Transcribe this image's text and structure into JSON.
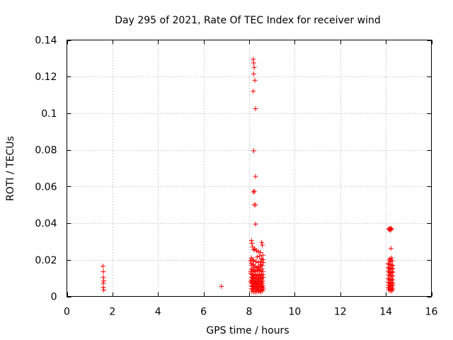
{
  "chart_data": {
    "type": "scatter",
    "title": "Day 295 of 2021, Rate Of TEC Index for receiver wind",
    "xlabel": "GPS time / hours",
    "ylabel": "ROTI / TECUs",
    "xlim": [
      0,
      16
    ],
    "ylim": [
      0,
      0.14
    ],
    "xticks": [
      0,
      2,
      4,
      6,
      8,
      10,
      12,
      14,
      16
    ],
    "yticks": [
      0,
      0.02,
      0.04,
      0.06,
      0.08,
      0.1,
      0.12,
      0.14
    ],
    "xtick_labels": [
      "0",
      "2",
      "4",
      "6",
      "8",
      "10",
      "12",
      "14",
      "16"
    ],
    "ytick_labels": [
      "0",
      "0.02",
      "0.04",
      "0.06",
      "0.08",
      "0.1",
      "0.12",
      "0.14"
    ],
    "grid": true,
    "marker": "+",
    "color": "#ff0000",
    "series": [
      {
        "points": [
          [
            1.58,
            0.0165
          ],
          [
            1.6,
            0.0135
          ],
          [
            1.6,
            0.0105
          ],
          [
            1.62,
            0.0085
          ],
          [
            1.6,
            0.0072
          ],
          [
            1.6,
            0.005
          ],
          [
            1.62,
            0.0035
          ],
          [
            6.78,
            0.0055
          ],
          [
            8.18,
            0.1295
          ],
          [
            8.2,
            0.1275
          ],
          [
            8.22,
            0.125
          ],
          [
            8.2,
            0.1215
          ],
          [
            8.25,
            0.118
          ],
          [
            8.18,
            0.112
          ],
          [
            8.28,
            0.1025
          ],
          [
            8.2,
            0.0795
          ],
          [
            8.28,
            0.0655
          ],
          [
            8.2,
            0.057
          ],
          [
            8.22,
            0.0575
          ],
          [
            8.22,
            0.05
          ],
          [
            8.28,
            0.05
          ],
          [
            8.28,
            0.0395
          ],
          [
            8.1,
            0.0305
          ],
          [
            8.12,
            0.029
          ],
          [
            8.15,
            0.027
          ],
          [
            8.2,
            0.0255
          ],
          [
            8.25,
            0.026
          ],
          [
            8.32,
            0.025
          ],
          [
            8.4,
            0.0245
          ],
          [
            8.55,
            0.0295
          ],
          [
            8.58,
            0.028
          ],
          [
            8.5,
            0.024
          ],
          [
            8.6,
            0.0225
          ],
          [
            8.45,
            0.022
          ],
          [
            8.35,
            0.0215
          ],
          [
            8.1,
            0.021
          ],
          [
            8.15,
            0.02
          ],
          [
            8.2,
            0.0195
          ],
          [
            8.3,
            0.019
          ],
          [
            8.4,
            0.0185
          ],
          [
            8.5,
            0.019
          ],
          [
            8.55,
            0.0205
          ],
          [
            8.6,
            0.02
          ],
          [
            8.1,
            0.018
          ],
          [
            8.12,
            0.017
          ],
          [
            8.18,
            0.0175
          ],
          [
            8.22,
            0.016
          ],
          [
            8.28,
            0.0165
          ],
          [
            8.35,
            0.0155
          ],
          [
            8.42,
            0.016
          ],
          [
            8.48,
            0.0165
          ],
          [
            8.52,
            0.0175
          ],
          [
            8.58,
            0.0168
          ],
          [
            8.1,
            0.015
          ],
          [
            8.15,
            0.0145
          ],
          [
            8.2,
            0.014
          ],
          [
            8.25,
            0.0135
          ],
          [
            8.3,
            0.014
          ],
          [
            8.38,
            0.0145
          ],
          [
            8.45,
            0.0138
          ],
          [
            8.5,
            0.0142
          ],
          [
            8.56,
            0.015
          ],
          [
            8.6,
            0.0135
          ],
          [
            8.08,
            0.0125
          ],
          [
            8.13,
            0.012
          ],
          [
            8.18,
            0.0115
          ],
          [
            8.24,
            0.0118
          ],
          [
            8.3,
            0.0112
          ],
          [
            8.36,
            0.012
          ],
          [
            8.42,
            0.0115
          ],
          [
            8.48,
            0.011
          ],
          [
            8.54,
            0.0122
          ],
          [
            8.6,
            0.0118
          ],
          [
            8.1,
            0.0105
          ],
          [
            8.15,
            0.01
          ],
          [
            8.2,
            0.0098
          ],
          [
            8.26,
            0.0095
          ],
          [
            8.32,
            0.0102
          ],
          [
            8.38,
            0.0098
          ],
          [
            8.44,
            0.0094
          ],
          [
            8.5,
            0.01
          ],
          [
            8.56,
            0.0096
          ],
          [
            8.1,
            0.009
          ],
          [
            8.14,
            0.0085
          ],
          [
            8.2,
            0.0082
          ],
          [
            8.25,
            0.008
          ],
          [
            8.3,
            0.0086
          ],
          [
            8.36,
            0.0078
          ],
          [
            8.42,
            0.0082
          ],
          [
            8.48,
            0.0085
          ],
          [
            8.54,
            0.0079
          ],
          [
            8.6,
            0.0083
          ],
          [
            8.1,
            0.0072
          ],
          [
            8.16,
            0.007
          ],
          [
            8.22,
            0.0068
          ],
          [
            8.28,
            0.0065
          ],
          [
            8.34,
            0.0071
          ],
          [
            8.4,
            0.0066
          ],
          [
            8.46,
            0.0069
          ],
          [
            8.52,
            0.0064
          ],
          [
            8.58,
            0.007
          ],
          [
            8.1,
            0.0058
          ],
          [
            8.14,
            0.0055
          ],
          [
            8.2,
            0.0052
          ],
          [
            8.26,
            0.005
          ],
          [
            8.32,
            0.0056
          ],
          [
            8.38,
            0.0053
          ],
          [
            8.44,
            0.0049
          ],
          [
            8.5,
            0.0055
          ],
          [
            8.56,
            0.0051
          ],
          [
            8.6,
            0.0058
          ],
          [
            8.1,
            0.0042
          ],
          [
            8.16,
            0.004
          ],
          [
            8.22,
            0.0038
          ],
          [
            8.28,
            0.0035
          ],
          [
            8.34,
            0.0041
          ],
          [
            8.4,
            0.0037
          ],
          [
            8.46,
            0.0033
          ],
          [
            8.52,
            0.0039
          ],
          [
            8.58,
            0.0036
          ],
          [
            8.12,
            0.0028
          ],
          [
            8.2,
            0.0025
          ],
          [
            8.3,
            0.0022
          ],
          [
            8.4,
            0.0027
          ],
          [
            8.5,
            0.0024
          ],
          [
            8.58,
            0.003
          ],
          [
            8.05,
            0.0195
          ],
          [
            8.07,
            0.0135
          ],
          [
            8.06,
            0.008
          ],
          [
            8.62,
            0.0185
          ],
          [
            8.62,
            0.0105
          ],
          [
            8.63,
            0.0045
          ],
          [
            14.15,
            0.037
          ],
          [
            14.18,
            0.0365
          ],
          [
            14.22,
            0.0372
          ],
          [
            14.25,
            0.0368
          ],
          [
            14.2,
            0.0362
          ],
          [
            14.12,
            0.0368
          ],
          [
            14.22,
            0.0262
          ],
          [
            14.25,
            0.021
          ],
          [
            14.18,
            0.0205
          ],
          [
            14.15,
            0.0198
          ],
          [
            14.2,
            0.019
          ],
          [
            14.28,
            0.0195
          ],
          [
            14.1,
            0.018
          ],
          [
            14.15,
            0.0175
          ],
          [
            14.2,
            0.017
          ],
          [
            14.25,
            0.0172
          ],
          [
            14.3,
            0.0168
          ],
          [
            14.1,
            0.0158
          ],
          [
            14.14,
            0.0152
          ],
          [
            14.2,
            0.0148
          ],
          [
            14.26,
            0.0155
          ],
          [
            14.3,
            0.015
          ],
          [
            14.1,
            0.0138
          ],
          [
            14.16,
            0.0132
          ],
          [
            14.22,
            0.0128
          ],
          [
            14.28,
            0.0135
          ],
          [
            14.3,
            0.013
          ],
          [
            14.12,
            0.0118
          ],
          [
            14.18,
            0.0112
          ],
          [
            14.24,
            0.0115
          ],
          [
            14.3,
            0.011
          ],
          [
            14.1,
            0.0098
          ],
          [
            14.15,
            0.0092
          ],
          [
            14.2,
            0.0088
          ],
          [
            14.26,
            0.0095
          ],
          [
            14.3,
            0.009
          ],
          [
            14.1,
            0.0078
          ],
          [
            14.16,
            0.0074
          ],
          [
            14.22,
            0.0072
          ],
          [
            14.28,
            0.0076
          ],
          [
            14.3,
            0.0068
          ],
          [
            14.12,
            0.0062
          ],
          [
            14.18,
            0.0058
          ],
          [
            14.24,
            0.0055
          ],
          [
            14.3,
            0.006
          ],
          [
            14.1,
            0.0048
          ],
          [
            14.16,
            0.0045
          ],
          [
            14.22,
            0.0042
          ],
          [
            14.28,
            0.0046
          ],
          [
            14.14,
            0.0035
          ],
          [
            14.2,
            0.0032
          ],
          [
            14.26,
            0.003
          ],
          [
            14.3,
            0.0038
          ]
        ]
      }
    ]
  }
}
